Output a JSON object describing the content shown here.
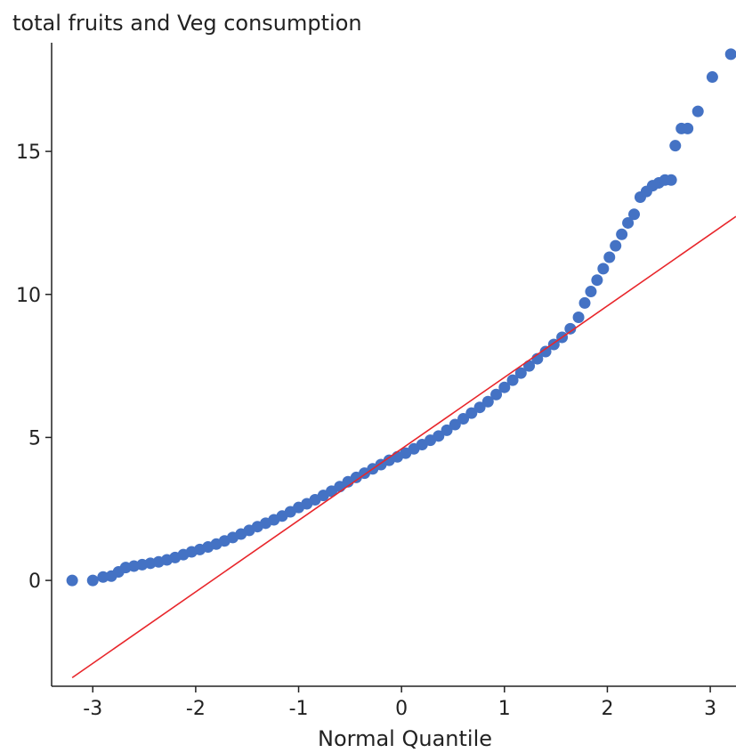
{
  "chart_data": {
    "type": "scatter",
    "title": "total fruits and Veg consumption",
    "xlabel": "Normal Quantile",
    "ylabel": "",
    "xlim": [
      -3.4,
      3.25
    ],
    "ylim": [
      -3.7,
      18.8
    ],
    "xticks": [
      -3,
      -2,
      -1,
      0,
      1,
      2,
      3
    ],
    "xtick_labels": [
      "-3",
      "-2",
      "-1",
      "0",
      "1",
      "2",
      "3"
    ],
    "yticks": [
      0,
      5,
      10,
      15
    ],
    "ytick_labels": [
      "0",
      "5",
      "10",
      "15"
    ],
    "grid": false,
    "legend": "none",
    "colors": {
      "points": "#4472c4",
      "reference_line": "#e8262b",
      "axis": "#222222"
    },
    "reference_line": {
      "slope": 2.5,
      "intercept": 4.6
    },
    "series": [
      {
        "x": [
          -3.2,
          -3.0,
          -2.9,
          -2.82,
          -2.75,
          -2.68,
          -2.6,
          -2.52,
          -2.44,
          -2.36,
          -2.28,
          -2.2,
          -2.12,
          -2.04,
          -1.96,
          -1.88,
          -1.8,
          -1.72,
          -1.64,
          -1.56,
          -1.48,
          -1.4,
          -1.32,
          -1.24,
          -1.16,
          -1.08,
          -1.0,
          -0.92,
          -0.84,
          -0.76,
          -0.68,
          -0.6,
          -0.52,
          -0.44,
          -0.36,
          -0.28,
          -0.2,
          -0.12,
          -0.04,
          0.04,
          0.12,
          0.2,
          0.28,
          0.36,
          0.44,
          0.52,
          0.6,
          0.68,
          0.76,
          0.84,
          0.92,
          1.0,
          1.08,
          1.16,
          1.24,
          1.32,
          1.4,
          1.48,
          1.56,
          1.64,
          1.72,
          1.78,
          1.84,
          1.9,
          1.96,
          2.02,
          2.08,
          2.14,
          2.2,
          2.26,
          2.32,
          2.38,
          2.44,
          2.5,
          2.56,
          2.62,
          2.66,
          2.72,
          2.78,
          2.88,
          3.02,
          3.2
        ],
        "y": [
          0.0,
          0.0,
          0.12,
          0.15,
          0.3,
          0.45,
          0.5,
          0.55,
          0.6,
          0.65,
          0.72,
          0.8,
          0.9,
          1.0,
          1.08,
          1.17,
          1.27,
          1.38,
          1.5,
          1.62,
          1.75,
          1.88,
          2.0,
          2.12,
          2.25,
          2.4,
          2.55,
          2.68,
          2.82,
          2.97,
          3.12,
          3.28,
          3.45,
          3.6,
          3.75,
          3.9,
          4.05,
          4.2,
          4.32,
          4.45,
          4.6,
          4.75,
          4.9,
          5.05,
          5.25,
          5.45,
          5.65,
          5.85,
          6.05,
          6.25,
          6.5,
          6.75,
          7.0,
          7.25,
          7.5,
          7.75,
          8.0,
          8.25,
          8.5,
          8.8,
          9.2,
          9.7,
          10.1,
          10.5,
          10.9,
          11.3,
          11.7,
          12.1,
          12.5,
          12.8,
          13.4,
          13.6,
          13.8,
          13.9,
          14.0,
          14.0,
          15.2,
          15.8,
          15.8,
          16.4,
          17.6,
          18.4
        ]
      }
    ]
  }
}
